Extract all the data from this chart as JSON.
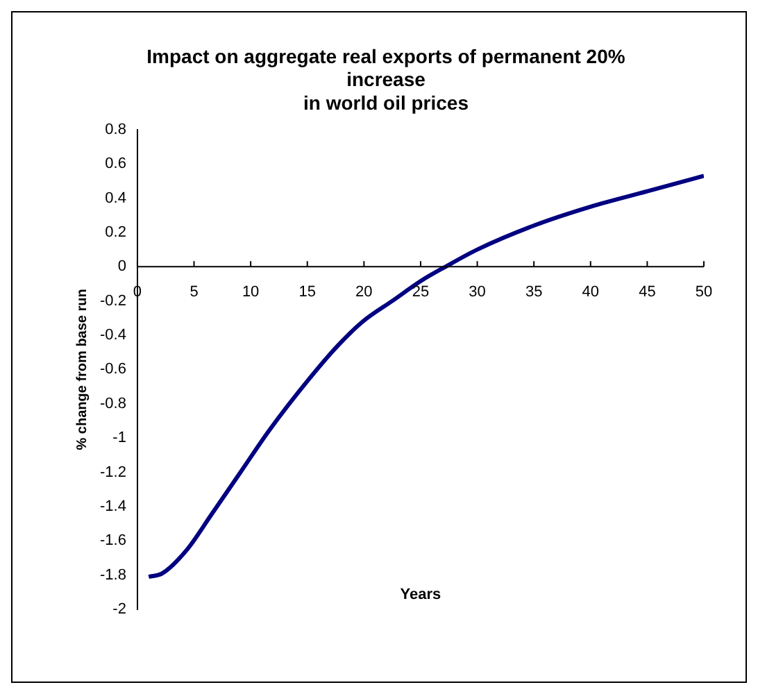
{
  "chart_data": {
    "type": "line",
    "title": "Impact on aggregate real exports of permanent 20%\nincrease\nin world oil prices",
    "xlabel": "Years",
    "ylabel": "% change from base run",
    "series": [
      {
        "color": "#000080",
        "x": [
          1,
          2.2,
          4.4,
          6.5,
          9.1,
          11.7,
          15.1,
          17.7,
          19.9,
          22.5,
          25.1,
          27.2,
          30,
          35,
          40,
          45,
          50
        ],
        "values": [
          -1.81,
          -1.79,
          -1.65,
          -1.45,
          -1.2,
          -0.95,
          -0.66,
          -0.46,
          -0.32,
          -0.2,
          -0.08,
          0,
          0.1,
          0.24,
          0.35,
          0.44,
          0.53
        ]
      }
    ],
    "xlim": [
      0,
      50
    ],
    "xticks": [
      0,
      5,
      10,
      15,
      20,
      25,
      30,
      35,
      40,
      45,
      50
    ],
    "ylim": [
      -2,
      0.8
    ],
    "yticks": [
      -2,
      -1.8,
      -1.6,
      -1.4,
      -1.2,
      -1,
      -0.8,
      -0.6,
      -0.4,
      -0.2,
      0,
      0.2,
      0.4,
      0.6,
      0.8
    ],
    "grid": false,
    "legend": false,
    "marker": "none",
    "line_style": "solid"
  }
}
